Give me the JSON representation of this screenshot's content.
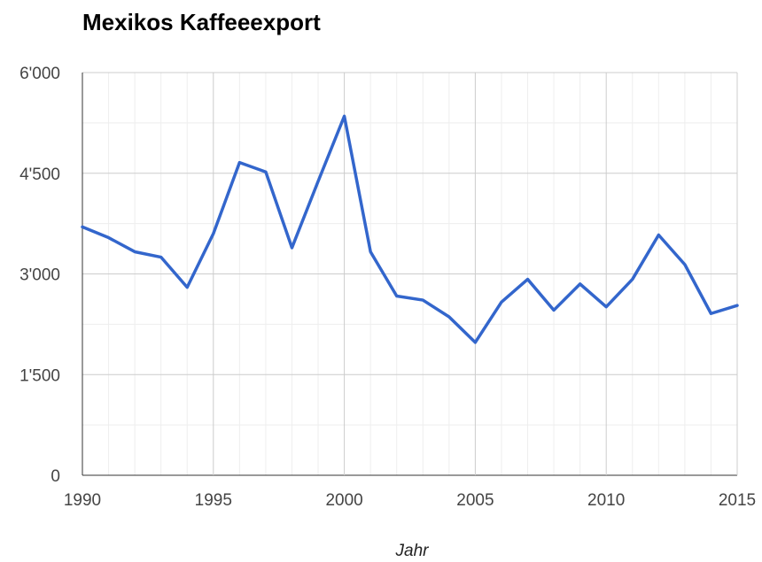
{
  "chart_data": {
    "type": "line",
    "title": "Mexikos Kaffeeexport",
    "xlabel": "Jahr",
    "ylabel": "",
    "xlim": [
      1990,
      2015
    ],
    "ylim": [
      0,
      6000
    ],
    "x_ticks": [
      1990,
      1995,
      2000,
      2005,
      2010,
      2015
    ],
    "x_tick_labels": [
      "1990",
      "1995",
      "2000",
      "2005",
      "2010",
      "2015"
    ],
    "y_ticks": [
      0,
      1500,
      3000,
      4500,
      6000
    ],
    "y_tick_labels": [
      "0",
      "1'500",
      "3'000",
      "4'500",
      "6'000"
    ],
    "grid": true,
    "legend": "none",
    "line_color": "#3366cc",
    "x": [
      1990,
      1991,
      1992,
      1993,
      1994,
      1995,
      1996,
      1997,
      1998,
      1999,
      2000,
      2001,
      2002,
      2003,
      2004,
      2005,
      2006,
      2007,
      2008,
      2009,
      2010,
      2011,
      2012,
      2013,
      2014,
      2015
    ],
    "series": [
      {
        "values": [
          3700,
          3540,
          3330,
          3250,
          2800,
          3600,
          4660,
          4520,
          3390,
          4380,
          5350,
          3330,
          2670,
          2610,
          2360,
          1980,
          2580,
          2920,
          2460,
          2850,
          2510,
          2920,
          3580,
          3140,
          2410,
          2530
        ]
      }
    ]
  }
}
